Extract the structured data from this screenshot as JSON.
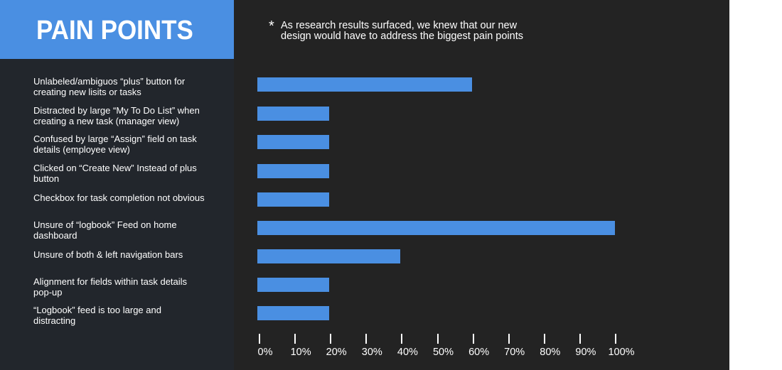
{
  "header": {
    "title": "PAIN POINTS",
    "note_star": "*",
    "note_line1": "As research results surfaced, we knew that our new",
    "note_line2": "design would have to address the biggest pain points"
  },
  "colors": {
    "accent": "#4a8fe2",
    "left_panel": "#22262c",
    "chart_background": "#232323",
    "text": "#ffffff"
  },
  "chart_data": {
    "type": "bar",
    "orientation": "horizontal",
    "title": "",
    "xlabel": "",
    "ylabel": "",
    "xlim": [
      0,
      100
    ],
    "x_unit": "%",
    "grid": false,
    "legend": "none",
    "categories": [
      [
        "Unlabeled/ambiguos “plus” button for",
        "creating new lisits or tasks"
      ],
      [
        "Distracted by large “My To Do List” when",
        "creating a new task (manager view)"
      ],
      [
        "Confused by large “Assign” field on task",
        "details (employee view)"
      ],
      [
        "Clicked on “Create New” Instead of plus",
        "button"
      ],
      [
        "Checkbox for task completion not obvious"
      ],
      [
        "Unsure of “logbook” Feed on home",
        "dashboard"
      ],
      [
        "Unsure of both & left navigation bars"
      ],
      [
        "Alignment for fields within task details",
        "pop-up"
      ],
      [
        "“Logbook” feed is too large and",
        "distracting"
      ]
    ],
    "values": [
      60,
      20,
      20,
      20,
      20,
      100,
      40,
      20,
      20
    ],
    "x_ticks": [
      "0%",
      "10%",
      "20%",
      "30%",
      "40%",
      "50%",
      "60%",
      "70%",
      "80%",
      "90%",
      "100%"
    ]
  }
}
